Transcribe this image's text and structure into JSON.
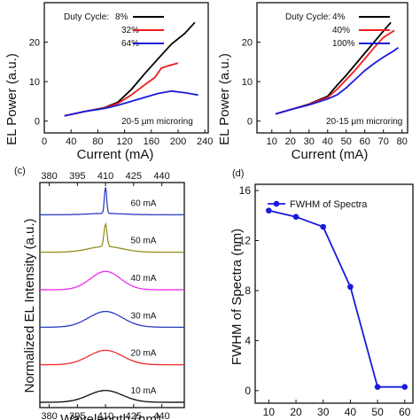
{
  "colors": {
    "black": "#000000",
    "red": "#ee1c1c",
    "blue": "#1a1adb",
    "olive": "#8f8a14",
    "magenta": "#ee22ee",
    "spectrumBlue": "#2233bb",
    "spectrumRed": "#ee2222",
    "axis": "#111111"
  },
  "chart_data": [
    {
      "id": "a",
      "type": "line",
      "xlabel": "Current (mA)",
      "ylabel": "EL Power (a.u.)",
      "xlim": [
        0,
        245
      ],
      "ylim": [
        -3,
        30
      ],
      "xticks": [
        0,
        40,
        80,
        120,
        160,
        200,
        240
      ],
      "yticks": [
        0,
        10,
        20
      ],
      "legend_title": "Duty Cycle:",
      "annotation": "20-5 μm microring",
      "series": [
        {
          "name": "8%",
          "color": "#000000",
          "points": [
            [
              30,
              1.3
            ],
            [
              60,
              2.4
            ],
            [
              90,
              3.4
            ],
            [
              110,
              4.8
            ],
            [
              130,
              8
            ],
            [
              150,
              12
            ],
            [
              170,
              15.8
            ],
            [
              190,
              19.5
            ],
            [
              210,
              22.2
            ],
            [
              225,
              25
            ]
          ]
        },
        {
          "name": "32%",
          "color": "#ee1c1c",
          "points": [
            [
              30,
              1.3
            ],
            [
              60,
              2.4
            ],
            [
              90,
              3.3
            ],
            [
              110,
              4.5
            ],
            [
              130,
              6.6
            ],
            [
              150,
              9.2
            ],
            [
              165,
              11
            ],
            [
              175,
              13.4
            ],
            [
              185,
              14
            ],
            [
              200,
              14.7
            ]
          ]
        },
        {
          "name": "64%",
          "color": "#1a1adb",
          "points": [
            [
              30,
              1.3
            ],
            [
              60,
              2.4
            ],
            [
              90,
              3.2
            ],
            [
              110,
              4
            ],
            [
              130,
              5
            ],
            [
              150,
              6
            ],
            [
              170,
              7
            ],
            [
              190,
              7.6
            ],
            [
              210,
              7.2
            ],
            [
              230,
              6.6
            ]
          ]
        }
      ]
    },
    {
      "id": "b",
      "type": "line",
      "xlabel": "Current (mA)",
      "ylabel": "EL Power (a.u.)",
      "xlim": [
        2,
        83
      ],
      "ylim": [
        -3,
        30
      ],
      "xticks": [
        10,
        20,
        30,
        40,
        50,
        60,
        70,
        80
      ],
      "yticks": [
        0,
        10,
        20
      ],
      "legend_title": "Duty Cycle:",
      "annotation": "20-15 μm microring",
      "series": [
        {
          "name": "4%",
          "color": "#000000",
          "points": [
            [
              12,
              1.8
            ],
            [
              20,
              2.9
            ],
            [
              30,
              4.3
            ],
            [
              40,
              6.3
            ],
            [
              45,
              9
            ],
            [
              50,
              11.6
            ],
            [
              55,
              14.4
            ],
            [
              60,
              17.2
            ],
            [
              65,
              20
            ],
            [
              70,
              22.8
            ],
            [
              74,
              25
            ]
          ]
        },
        {
          "name": "40%",
          "color": "#ee1c1c",
          "points": [
            [
              12,
              1.8
            ],
            [
              20,
              2.9
            ],
            [
              30,
              4.2
            ],
            [
              40,
              6
            ],
            [
              45,
              8
            ],
            [
              50,
              10.5
            ],
            [
              55,
              13
            ],
            [
              60,
              15.8
            ],
            [
              65,
              18.6
            ],
            [
              70,
              21.2
            ],
            [
              76,
              23
            ]
          ]
        },
        {
          "name": "100%",
          "color": "#1a1adb",
          "points": [
            [
              12,
              1.8
            ],
            [
              20,
              2.9
            ],
            [
              30,
              4.1
            ],
            [
              40,
              5.6
            ],
            [
              45,
              6.6
            ],
            [
              50,
              8.4
            ],
            [
              55,
              10.6
            ],
            [
              60,
              12.8
            ],
            [
              65,
              14.6
            ],
            [
              70,
              16.2
            ],
            [
              75,
              17.6
            ],
            [
              78,
              18.6
            ]
          ]
        }
      ]
    },
    {
      "id": "c",
      "type": "line",
      "panel_label": "(c)",
      "xlabel": "Wavelength (nm)",
      "ylabel": "Normalized EL Intensity (a.u.)",
      "xlim": [
        375,
        452
      ],
      "xticks": [
        380,
        395,
        410,
        425,
        440
      ],
      "series": [
        {
          "name": "60 mA",
          "color": "#2233bb",
          "center": 410,
          "peak": 1.0,
          "width": 0.6,
          "bump": 0.05
        },
        {
          "name": "50 mA",
          "color": "#8f8a14",
          "center": 410,
          "peak": 0.85,
          "width": 0.8,
          "bump": 0.22
        },
        {
          "name": "40 mA",
          "color": "#ee22ee",
          "center": 410,
          "peak": 0.7,
          "width": 8,
          "bump": 0
        },
        {
          "name": "30 mA",
          "color": "#2233bb",
          "center": 410,
          "peak": 0.6,
          "width": 9,
          "bump": 0
        },
        {
          "name": "20 mA",
          "color": "#ee2222",
          "center": 410,
          "peak": 0.55,
          "width": 9,
          "bump": 0
        },
        {
          "name": "10 mA",
          "color": "#000000",
          "center": 410,
          "peak": 0.45,
          "width": 9,
          "bump": 0
        }
      ]
    },
    {
      "id": "d",
      "type": "line",
      "panel_label": "(d)",
      "xlabel": "",
      "ylabel": "FWHM of Spectra (nm)",
      "xlim": [
        5,
        63
      ],
      "ylim": [
        -1,
        16.5
      ],
      "xticks": [
        10,
        20,
        30,
        40,
        50,
        60
      ],
      "yticks": [
        0,
        4,
        8,
        12,
        16
      ],
      "series": [
        {
          "name": "FWHM of Spectra",
          "color": "#1a1adb",
          "x": [
            10,
            20,
            30,
            40,
            50,
            60
          ],
          "y": [
            14.4,
            13.9,
            13.1,
            8.3,
            0.3,
            0.3
          ]
        }
      ]
    }
  ]
}
